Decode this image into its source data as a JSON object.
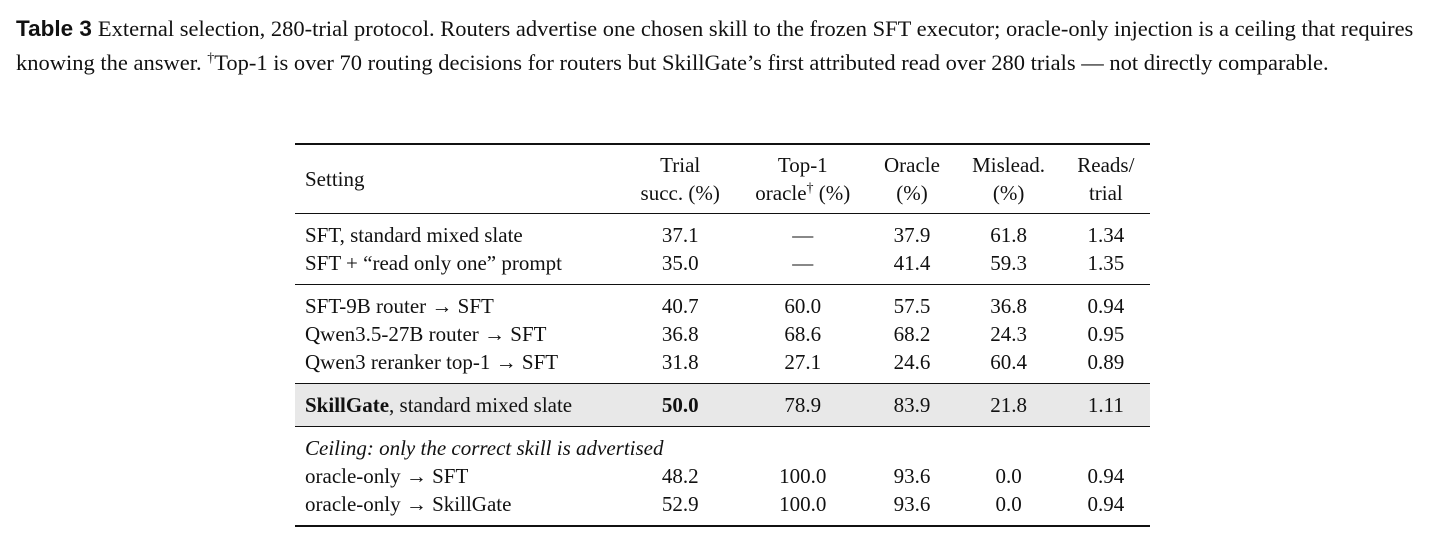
{
  "caption": {
    "label": "Table 3",
    "text_before": "External selection, 280-trial protocol. Routers advertise one chosen skill to the frozen SFT executor; oracle-only injection is a ceiling that requires knowing the answer. ",
    "dagger": "†",
    "text_after": "Top-1 is over 70 routing decisions for routers but SkillGate’s first attributed read over 280 trials — not directly comparable."
  },
  "table": {
    "header": [
      {
        "lines": [
          "Setting"
        ]
      },
      {
        "lines": [
          "Trial",
          "succ. (%)"
        ]
      },
      {
        "lines": [
          "Top-1"
        ],
        "line2_before": "oracle",
        "sup": "†",
        "line2_after": " (%)"
      },
      {
        "lines": [
          "Oracle",
          "(%)"
        ]
      },
      {
        "lines": [
          "Mislead.",
          "(%)"
        ]
      },
      {
        "lines": [
          "Reads/",
          "trial"
        ]
      }
    ],
    "groups": [
      {
        "rows": [
          {
            "setting": "SFT, standard mixed slate",
            "values": [
              "37.1",
              "—",
              "37.9",
              "61.8",
              "1.34"
            ]
          },
          {
            "setting": "SFT + “read only one” prompt",
            "values": [
              "35.0",
              "—",
              "41.4",
              "59.3",
              "1.35"
            ]
          }
        ]
      },
      {
        "rows": [
          {
            "setting": "SFT-9B router → SFT",
            "values": [
              "40.7",
              "60.0",
              "57.5",
              "36.8",
              "0.94"
            ]
          },
          {
            "setting": "Qwen3.5-27B router → SFT",
            "values": [
              "36.8",
              "68.6",
              "68.2",
              "24.3",
              "0.95"
            ]
          },
          {
            "setting": "Qwen3 reranker top-1 → SFT",
            "values": [
              "31.8",
              "27.1",
              "24.6",
              "60.4",
              "0.89"
            ]
          }
        ]
      },
      {
        "highlight": true,
        "rows": [
          {
            "setting_bold": "SkillGate",
            "setting": ", standard mixed slate",
            "values": [
              "50.0",
              "78.9",
              "83.9",
              "21.8",
              "1.11"
            ]
          }
        ]
      },
      {
        "note": "Ceiling: only the correct skill is advertised",
        "rows": [
          {
            "setting": "oracle-only → SFT",
            "values": [
              "48.2",
              "100.0",
              "93.6",
              "0.0",
              "0.94"
            ]
          },
          {
            "setting": "oracle-only → SkillGate",
            "values": [
              "52.9",
              "100.0",
              "93.6",
              "0.0",
              "0.94"
            ]
          }
        ]
      }
    ]
  }
}
